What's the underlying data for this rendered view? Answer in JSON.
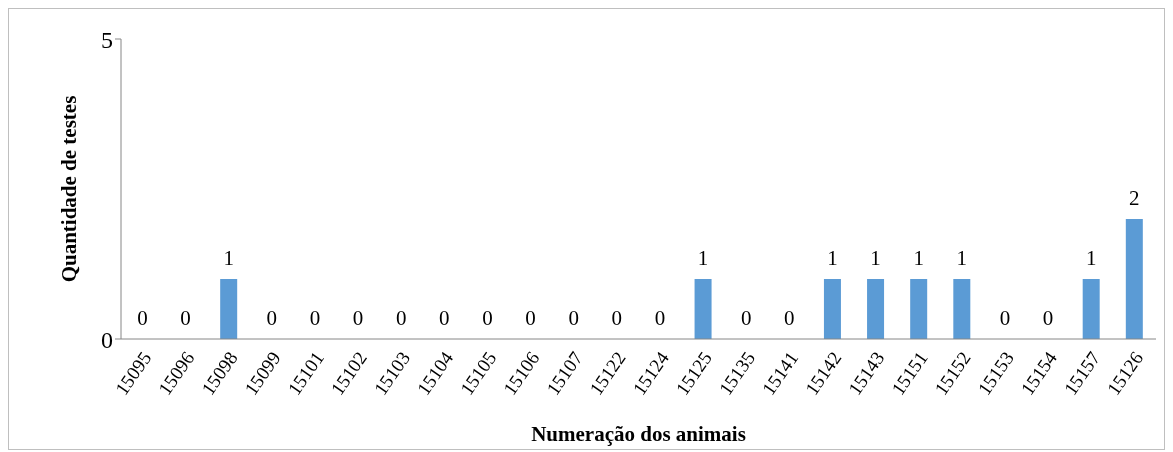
{
  "chart_data": {
    "type": "bar",
    "xlabel": "Numeração dos animais",
    "ylabel": "Quantidade de  testes",
    "categories": [
      "15095",
      "15096",
      "15098",
      "15099",
      "15101",
      "15102",
      "15103",
      "15104",
      "15105",
      "15106",
      "15107",
      "15122",
      "15124",
      "15125",
      "15135",
      "15141",
      "15142",
      "15143",
      "15151",
      "15152",
      "15153",
      "15154",
      "15157",
      "15126"
    ],
    "values": [
      0,
      0,
      1,
      0,
      0,
      0,
      0,
      0,
      0,
      0,
      0,
      0,
      0,
      1,
      0,
      0,
      1,
      1,
      1,
      1,
      0,
      0,
      1,
      2
    ],
    "color": "#5b9bd5",
    "ylim": [
      0,
      5
    ],
    "yticks": [
      0,
      5
    ],
    "grid": false,
    "data_labels": true
  }
}
